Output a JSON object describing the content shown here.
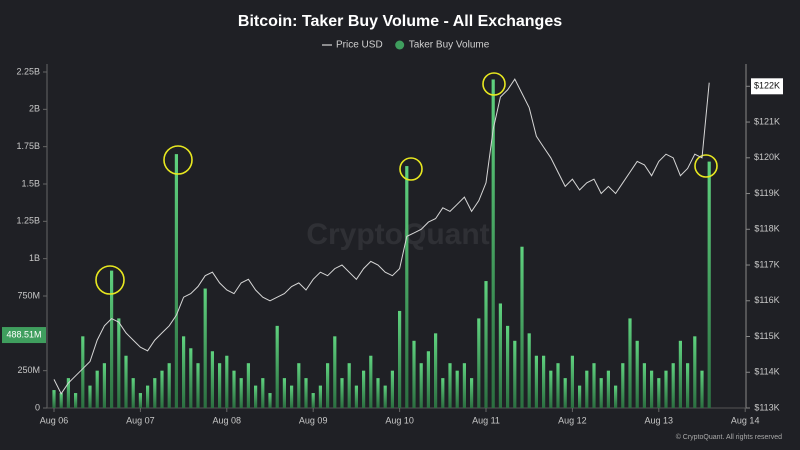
{
  "chart_data": {
    "type": "bar",
    "title": "Bitcoin: Taker Buy Volume - All Exchanges",
    "watermark": "CryptoQuant",
    "footer": "© CryptoQuant. All rights reserved",
    "categories": [
      "Aug 06",
      null,
      null,
      null,
      null,
      null,
      null,
      null,
      null,
      null,
      null,
      null,
      "Aug 07",
      null,
      null,
      null,
      null,
      null,
      null,
      null,
      null,
      null,
      null,
      null,
      "Aug 08",
      null,
      null,
      null,
      null,
      null,
      null,
      null,
      null,
      null,
      null,
      null,
      "Aug 09",
      null,
      null,
      null,
      null,
      null,
      null,
      null,
      null,
      null,
      null,
      null,
      "Aug 10",
      null,
      null,
      null,
      null,
      null,
      null,
      null,
      null,
      null,
      null,
      null,
      "Aug 11",
      null,
      null,
      null,
      null,
      null,
      null,
      null,
      null,
      null,
      null,
      null,
      "Aug 12",
      null,
      null,
      null,
      null,
      null,
      null,
      null,
      null,
      null,
      null,
      null,
      "Aug 13",
      null,
      null,
      null,
      null,
      null,
      null,
      null,
      null,
      null,
      null,
      null,
      "Aug 14"
    ],
    "series": [
      {
        "name": "Price USD",
        "type": "line",
        "axis": "y2",
        "color": "#d6d6d6",
        "values": [
          113.8,
          113.4,
          113.7,
          113.9,
          114.1,
          114.3,
          114.9,
          115.3,
          115.5,
          115.4,
          115.1,
          114.9,
          114.7,
          114.6,
          114.9,
          115.1,
          115.3,
          115.6,
          116.1,
          116.2,
          116.4,
          116.7,
          116.8,
          116.5,
          116.3,
          116.2,
          116.5,
          116.6,
          116.3,
          116.1,
          116.0,
          116.1,
          116.2,
          116.4,
          116.5,
          116.3,
          116.6,
          116.8,
          116.7,
          116.9,
          117.0,
          116.8,
          116.6,
          116.9,
          117.1,
          117.0,
          116.8,
          116.7,
          116.9,
          117.8,
          117.9,
          118.0,
          118.2,
          118.3,
          118.6,
          118.5,
          118.7,
          118.9,
          118.5,
          118.8,
          119.3,
          120.8,
          121.7,
          121.9,
          122.2,
          121.8,
          121.4,
          120.6,
          120.3,
          120.0,
          119.6,
          119.2,
          119.4,
          119.1,
          119.3,
          119.4,
          119.0,
          119.2,
          119.0,
          119.3,
          119.6,
          119.9,
          119.8,
          119.5,
          119.9,
          120.1,
          120.0,
          119.5,
          119.7,
          120.1,
          120.0,
          122.1,
          null,
          null,
          null,
          null,
          null
        ]
      },
      {
        "name": "Taker Buy Volume",
        "type": "bar",
        "color": "#3f9e5e",
        "values": [
          0.12,
          0.1,
          0.2,
          0.1,
          0.48,
          0.15,
          0.25,
          0.3,
          0.92,
          0.6,
          0.35,
          0.2,
          0.1,
          0.15,
          0.2,
          0.25,
          0.3,
          1.7,
          0.48,
          0.4,
          0.3,
          0.8,
          0.38,
          0.3,
          0.35,
          0.25,
          0.2,
          0.3,
          0.15,
          0.2,
          0.1,
          0.55,
          0.2,
          0.15,
          0.3,
          0.2,
          0.1,
          0.15,
          0.3,
          0.48,
          0.2,
          0.3,
          0.15,
          0.25,
          0.35,
          0.2,
          0.15,
          0.25,
          0.65,
          1.62,
          0.45,
          0.3,
          0.38,
          0.5,
          0.2,
          0.3,
          0.25,
          0.3,
          0.2,
          0.6,
          0.85,
          2.2,
          0.7,
          0.55,
          0.45,
          1.08,
          0.5,
          0.35,
          0.35,
          0.25,
          0.3,
          0.2,
          0.35,
          0.15,
          0.25,
          0.3,
          0.2,
          0.25,
          0.15,
          0.3,
          0.6,
          0.45,
          0.3,
          0.25,
          0.2,
          0.25,
          0.3,
          0.45,
          0.3,
          0.48,
          0.25,
          1.65,
          null,
          null,
          null,
          null,
          null
        ]
      }
    ],
    "ylim": [
      0,
      2.25
    ],
    "yticks": [
      0,
      {
        "value": 0.25,
        "label": "250M"
      },
      {
        "value": 0.75,
        "label": "750M"
      },
      {
        "value": 1,
        "label": "1B"
      },
      {
        "value": 1.25,
        "label": "1.25B"
      },
      {
        "value": 1.5,
        "label": "1.5B"
      },
      {
        "value": 1.75,
        "label": "1.75B"
      },
      {
        "value": 2,
        "label": "2B"
      },
      {
        "value": 2.25,
        "label": "2.25B"
      }
    ],
    "y2lim": [
      113,
      122.4
    ],
    "y2ticks": [
      {
        "value": 113,
        "label": "$113K"
      },
      {
        "value": 114,
        "label": "$114K"
      },
      {
        "value": 115,
        "label": "$115K"
      },
      {
        "value": 116,
        "label": "$116K"
      },
      {
        "value": 117,
        "label": "$117K"
      },
      {
        "value": 118,
        "label": "$118K"
      },
      {
        "value": 119,
        "label": "$119K"
      },
      {
        "value": 120,
        "label": "$120K"
      },
      {
        "value": 121,
        "label": "$121K"
      },
      {
        "value": 122,
        "label": "$122K"
      }
    ],
    "annotations": [
      {
        "value": 0.48851,
        "label": "488.51M"
      }
    ],
    "grid": false,
    "legend": "top"
  }
}
